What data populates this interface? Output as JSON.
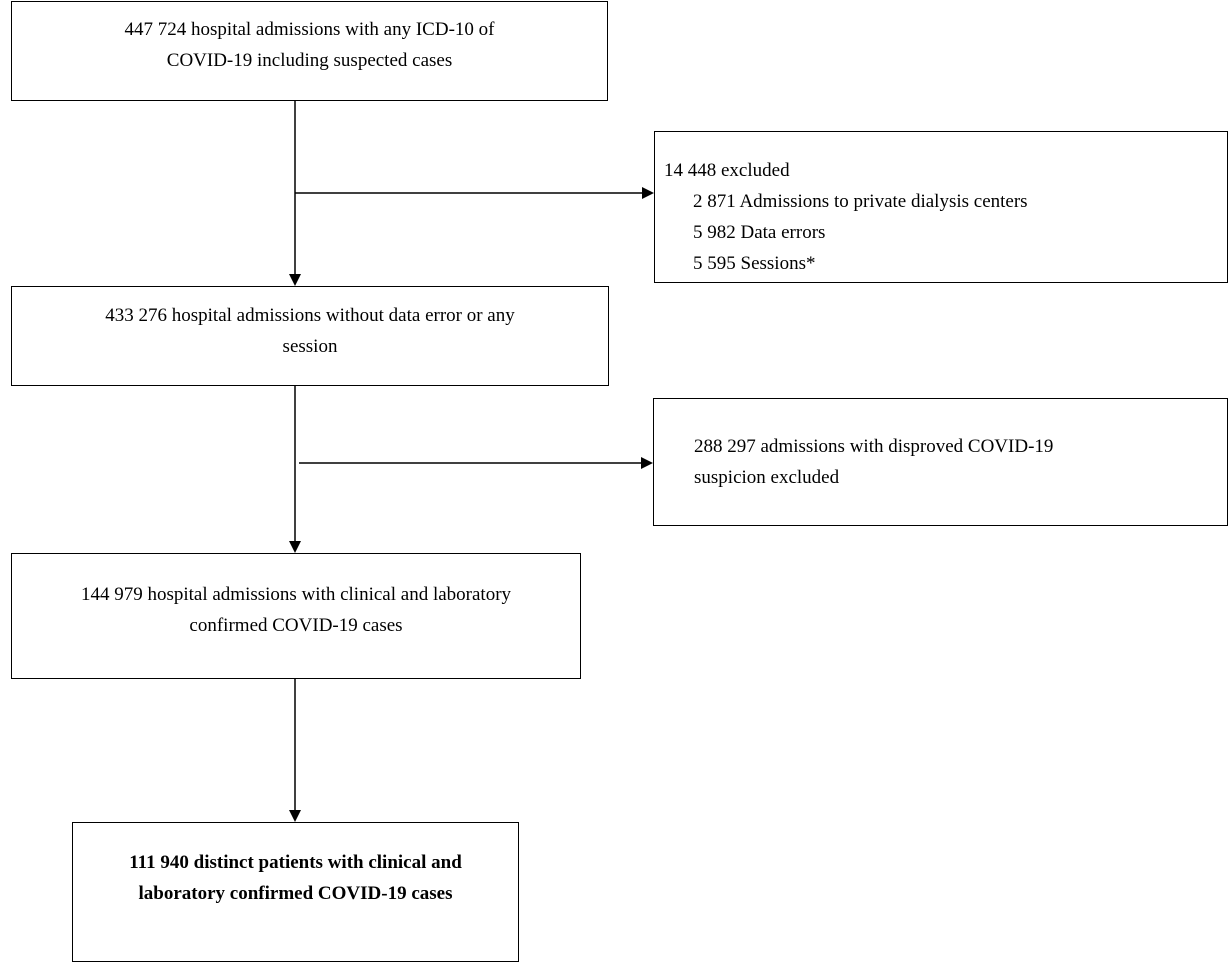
{
  "flowchart": {
    "box_start": {
      "lines": [
        "447 724 hospital admissions with any ICD-10 of",
        "COVID-19 including suspected cases"
      ]
    },
    "box_excluded_1": {
      "heading": "14 448 excluded",
      "items": [
        "2 871 Admissions to private dialysis centers",
        "5 982 Data errors",
        "5 595 Sessions*"
      ]
    },
    "box_step_2": {
      "lines": [
        "433 276 hospital admissions without data error or any",
        "session"
      ]
    },
    "box_excluded_2": {
      "lines": [
        "288 297 admissions with disproved COVID-19",
        "suspicion excluded"
      ]
    },
    "box_step_3": {
      "lines": [
        "144 979 hospital admissions with clinical and laboratory",
        "confirmed COVID-19 cases"
      ]
    },
    "box_final": {
      "lines": [
        "111 940 distinct patients with clinical and",
        "laboratory confirmed COVID-19 cases"
      ]
    }
  },
  "colors": {
    "stroke": "#000000",
    "background": "#ffffff"
  }
}
